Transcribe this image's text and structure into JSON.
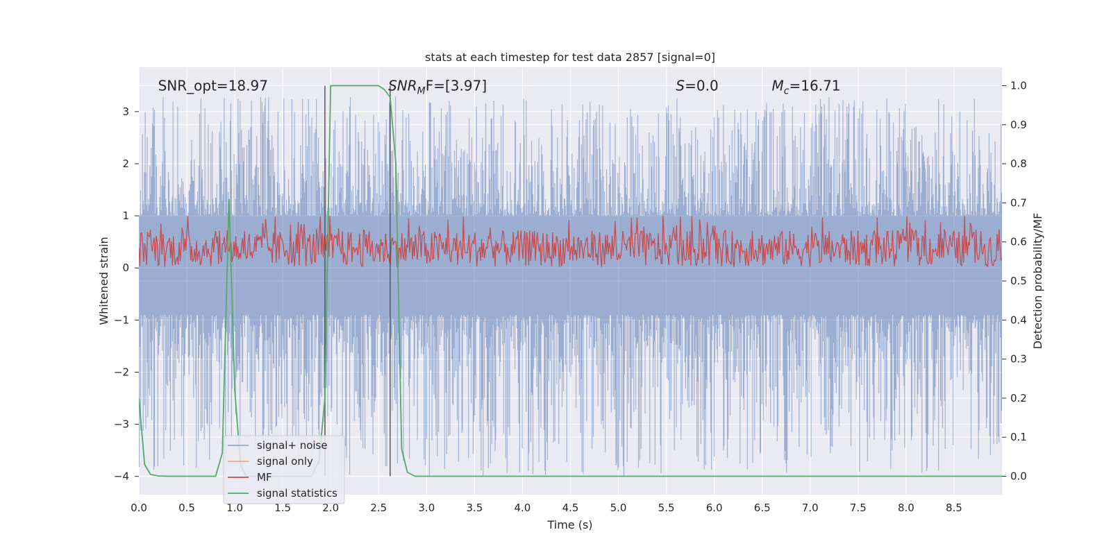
{
  "chart_data": {
    "type": "line",
    "title": "stats at each timestep for test data 2857 [signal=0]",
    "xlabel": "Time (s)",
    "ylabel": "Whitened strain",
    "y2label": "Detection probability/MF",
    "xlim": [
      0,
      9.0
    ],
    "ylim": [
      -4.35,
      3.85
    ],
    "y2lim": [
      -0.047,
      1.047
    ],
    "xticks": [
      "0.0",
      "0.5",
      "1.0",
      "1.5",
      "2.0",
      "2.5",
      "3.0",
      "3.5",
      "4.0",
      "4.5",
      "5.0",
      "5.5",
      "6.0",
      "6.5",
      "7.0",
      "7.5",
      "8.0",
      "8.5"
    ],
    "yticks": [
      "3",
      "2",
      "1",
      "0",
      "−1",
      "−2",
      "−3",
      "−4"
    ],
    "y2ticks": [
      "1.0",
      "0.9",
      "0.8",
      "0.7",
      "0.6",
      "0.5",
      "0.4",
      "0.3",
      "0.2",
      "0.1",
      "0.0"
    ],
    "grid": true,
    "legend_position": "lower-left",
    "annotations": [
      {
        "label": "SNR_opt=18.97",
        "x": 0.2,
        "y": 3.5
      },
      {
        "base": "SNR",
        "sub": "M",
        "suffix": "F=[3.97]",
        "x": 2.6,
        "y": 3.5
      },
      {
        "base": "S",
        "sub": "",
        "suffix": "=0.0",
        "x": 5.6,
        "y": 3.5
      },
      {
        "base": "M",
        "sub": "c",
        "suffix": "=16.71",
        "x": 6.6,
        "y": 3.5
      }
    ],
    "vlines": [
      1.94,
      2.62
    ],
    "series": [
      {
        "name": "signal+ noise",
        "color": "#4c72b0",
        "axis": "left",
        "kind": "noise",
        "upper_range": [
          1.0,
          3.3
        ],
        "lower_range": [
          -4.0,
          -0.9
        ]
      },
      {
        "name": "signal only",
        "color": "#dd8452",
        "axis": "left",
        "values": []
      },
      {
        "name": "MF",
        "color": "#c44e52",
        "axis": "left",
        "kind": "noise",
        "range": [
          0.0,
          1.0
        ],
        "typical": [
          0.1,
          0.7
        ]
      },
      {
        "name": "signal statistics",
        "color": "#55a868",
        "axis": "right",
        "x": [
          0.0,
          0.06,
          0.12,
          0.2,
          0.3,
          0.5,
          0.8,
          0.87,
          0.94,
          1.0,
          1.06,
          1.12,
          1.2,
          1.4,
          1.6,
          1.8,
          1.88,
          1.94,
          2.0,
          2.1,
          2.3,
          2.5,
          2.56,
          2.62,
          2.68,
          2.74,
          2.8,
          2.88,
          3.0,
          4.0,
          5.0,
          6.0,
          7.0,
          8.0,
          9.0
        ],
        "values": [
          0.2,
          0.03,
          0.005,
          0.001,
          0.0,
          0.0,
          0.0,
          0.06,
          0.71,
          0.22,
          0.03,
          0.0,
          0.0,
          0.0,
          0.0,
          0.0,
          0.04,
          0.2,
          1.0,
          1.0,
          1.0,
          1.0,
          0.99,
          0.97,
          0.8,
          0.07,
          0.01,
          0.0,
          0.0,
          0.0,
          0.0,
          0.0,
          0.0,
          0.0,
          0.0
        ]
      }
    ]
  }
}
